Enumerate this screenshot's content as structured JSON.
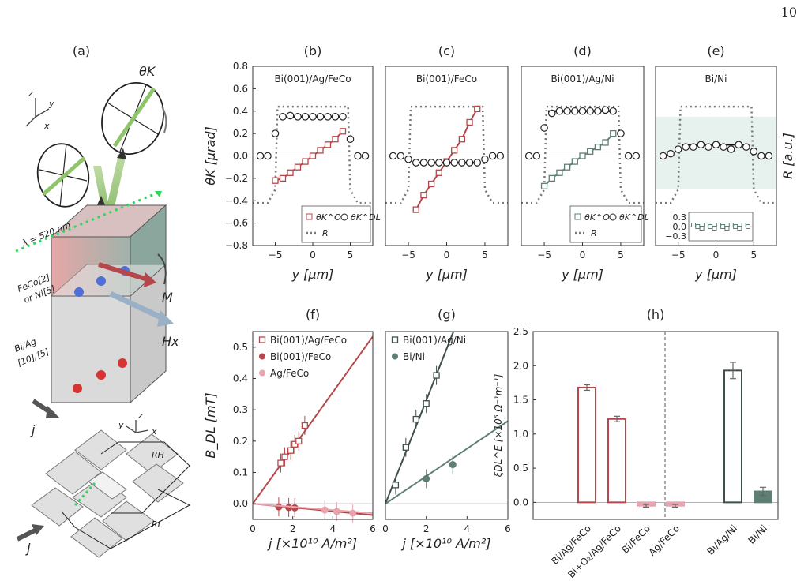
{
  "page_number": "10",
  "panel_labels": {
    "a": "(a)",
    "b": "(b)",
    "c": "(c)",
    "d": "(d)",
    "e": "(e)",
    "f": "(f)",
    "g": "(g)",
    "h": "(h)"
  },
  "schematic": {
    "theta_label": "θK",
    "wavelength_label": "λ = 520 nm",
    "ferromagnet_label": "FeCo[2]",
    "ferromagnet_label2": "or Ni[5]",
    "bi_label": "Bi/Ag",
    "bi_label2": "[10]/[5]",
    "m_label": "M",
    "hx_label": "Hx",
    "j_label": "j",
    "rh_label": "RH",
    "rl_label": "RL",
    "axes_top": [
      "z",
      "y",
      "x"
    ],
    "axes_bottom": [
      "z",
      "y",
      "x"
    ]
  },
  "colors": {
    "red": "#b5474a",
    "green": "#5e7f74",
    "pink": "#e8a4ae",
    "grey": "#8a8a8a",
    "dark": "#3f4f4a"
  },
  "chart_data": [
    {
      "panel": "b",
      "type": "scatter",
      "title": "Bi(001)/Ag/FeCo",
      "xlabel": "y [μm]",
      "ylabel": "θK [μrad]",
      "xlim": [
        -8,
        8
      ],
      "ylim": [
        -0.8,
        0.8
      ],
      "xticks": [
        -5,
        0,
        5
      ],
      "yticks": [
        -0.8,
        -0.6,
        -0.4,
        -0.2,
        0.0,
        0.2,
        0.4,
        0.6,
        0.8
      ],
      "legend": [
        "θK^Oe",
        "θK^DL",
        "R"
      ],
      "oe_x": [
        -5,
        -4,
        -3,
        -2,
        -1,
        0,
        1,
        2,
        3,
        4
      ],
      "oe_y": [
        -0.22,
        -0.2,
        -0.15,
        -0.1,
        -0.05,
        0.0,
        0.05,
        0.1,
        0.15,
        0.22
      ],
      "dl_x": [
        -7,
        -6,
        -5,
        -4,
        -3,
        -2,
        -1,
        0,
        1,
        2,
        3,
        4,
        5,
        6,
        7
      ],
      "dl_y": [
        0.0,
        0.0,
        0.2,
        0.35,
        0.36,
        0.35,
        0.35,
        0.35,
        0.35,
        0.35,
        0.35,
        0.35,
        0.15,
        0.0,
        0.0
      ]
    },
    {
      "panel": "c",
      "type": "scatter",
      "title": "Bi(001)/FeCo",
      "xlabel": "y [μm]",
      "xlim": [
        -8,
        8
      ],
      "ylim": [
        -0.8,
        0.8
      ],
      "xticks": [
        -5,
        0,
        5
      ],
      "oe_x": [
        -4,
        -3,
        -2,
        -1,
        0,
        1,
        2,
        3,
        4
      ],
      "oe_y": [
        -0.48,
        -0.35,
        -0.25,
        -0.15,
        -0.05,
        0.05,
        0.15,
        0.3,
        0.42
      ],
      "dl_x": [
        -7,
        -6,
        -5,
        -4,
        -3,
        -2,
        -1,
        0,
        1,
        2,
        3,
        4,
        5,
        6,
        7
      ],
      "dl_y": [
        0.0,
        0.0,
        -0.03,
        -0.06,
        -0.06,
        -0.06,
        -0.06,
        -0.06,
        -0.06,
        -0.06,
        -0.06,
        -0.06,
        -0.03,
        0.0,
        0.0
      ]
    },
    {
      "panel": "d",
      "type": "scatter",
      "title": "Bi(001)/Ag/Ni",
      "xlabel": "y [μm]",
      "xlim": [
        -8,
        8
      ],
      "ylim": [
        -0.8,
        0.8
      ],
      "xticks": [
        -5,
        0,
        5
      ],
      "legend": [
        "θK^Oe",
        "θK^DL",
        "R"
      ],
      "oe_x": [
        -5,
        -4,
        -3,
        -2,
        -1,
        0,
        1,
        2,
        3,
        4
      ],
      "oe_y": [
        -0.27,
        -0.2,
        -0.15,
        -0.1,
        -0.05,
        0.0,
        0.04,
        0.08,
        0.12,
        0.2
      ],
      "dl_x": [
        -7,
        -6,
        -5,
        -4,
        -3,
        -2,
        -1,
        0,
        1,
        2,
        3,
        4,
        5,
        6,
        7
      ],
      "dl_y": [
        0.0,
        0.0,
        0.25,
        0.38,
        0.4,
        0.4,
        0.4,
        0.4,
        0.4,
        0.4,
        0.41,
        0.4,
        0.2,
        0.0,
        0.0
      ]
    },
    {
      "panel": "e",
      "type": "scatter",
      "title": "Bi/Ni",
      "ylabel_right": "R [a.u.]",
      "xlabel": "y [μm]",
      "xlim": [
        -8,
        8
      ],
      "ylim": [
        -0.8,
        0.8
      ],
      "xticks": [
        -5,
        0,
        5
      ],
      "inset_yticks": [
        0.3,
        0.0,
        -0.3
      ],
      "dl_x": [
        -7,
        -6,
        -5,
        -4,
        -3,
        -2,
        -1,
        0,
        1,
        2,
        3,
        4,
        5,
        6,
        7
      ],
      "dl_y": [
        0.0,
        0.02,
        0.06,
        0.08,
        0.08,
        0.1,
        0.08,
        0.1,
        0.08,
        0.06,
        0.1,
        0.08,
        0.04,
        0.0,
        0.0
      ]
    },
    {
      "panel": "f",
      "type": "scatter",
      "xlabel": "j [×10¹⁰ A/m²]",
      "ylabel": "B_DL [mT]",
      "xlim": [
        0,
        6
      ],
      "ylim": [
        -0.05,
        0.55
      ],
      "xticks": [
        0,
        2,
        4,
        6
      ],
      "yticks": [
        0.0,
        0.1,
        0.2,
        0.3,
        0.4,
        0.5
      ],
      "series": [
        {
          "name": "Bi(001)/Ag/FeCo",
          "x": [
            1.4,
            1.6,
            1.9,
            2.1,
            2.3,
            2.6
          ],
          "y": [
            0.13,
            0.15,
            0.17,
            0.19,
            0.2,
            0.25
          ],
          "slope": 0.089
        },
        {
          "name": "Bi(001)/FeCo",
          "x": [
            1.3,
            1.8,
            2.1
          ],
          "y": [
            -0.01,
            -0.012,
            -0.013
          ],
          "slope": -0.006
        },
        {
          "name": "Ag/FeCo",
          "x": [
            3.6,
            4.2,
            5.0
          ],
          "y": [
            -0.02,
            -0.025,
            -0.03
          ],
          "slope": -0.005
        }
      ]
    },
    {
      "panel": "g",
      "type": "scatter",
      "xlabel": "j [×10¹⁰ A/m²]",
      "xlim": [
        0,
        6
      ],
      "ylim": [
        -0.05,
        0.55
      ],
      "xticks": [
        0,
        2,
        4,
        6
      ],
      "series": [
        {
          "name": "Bi(001)/Ag/Ni",
          "x": [
            0.5,
            1.0,
            1.5,
            2.0,
            2.5
          ],
          "y": [
            0.06,
            0.18,
            0.27,
            0.32,
            0.41
          ],
          "slope": 0.165
        },
        {
          "name": "Bi/Ni",
          "x": [
            2.0,
            3.3
          ],
          "y": [
            0.08,
            0.125
          ],
          "slope": 0.044
        }
      ]
    },
    {
      "panel": "h",
      "type": "bar",
      "ylabel": "ξDL^E [×10⁵ Ω⁻¹m⁻¹]",
      "ylim": [
        -0.25,
        2.5
      ],
      "yticks": [
        0.0,
        0.5,
        1.0,
        1.5,
        2.0,
        2.5
      ],
      "categories": [
        "Bi/Ag/FeCo",
        "Bi+O₂/Ag/FeCo",
        "Bi/FeCo",
        "Ag/FeCo",
        "Bi/Ag/Ni",
        "Bi/Ni"
      ],
      "values": [
        1.68,
        1.22,
        -0.05,
        -0.05,
        1.93,
        0.16
      ],
      "errors": [
        0.04,
        0.04,
        0.02,
        0.02,
        0.12,
        0.06
      ]
    }
  ]
}
